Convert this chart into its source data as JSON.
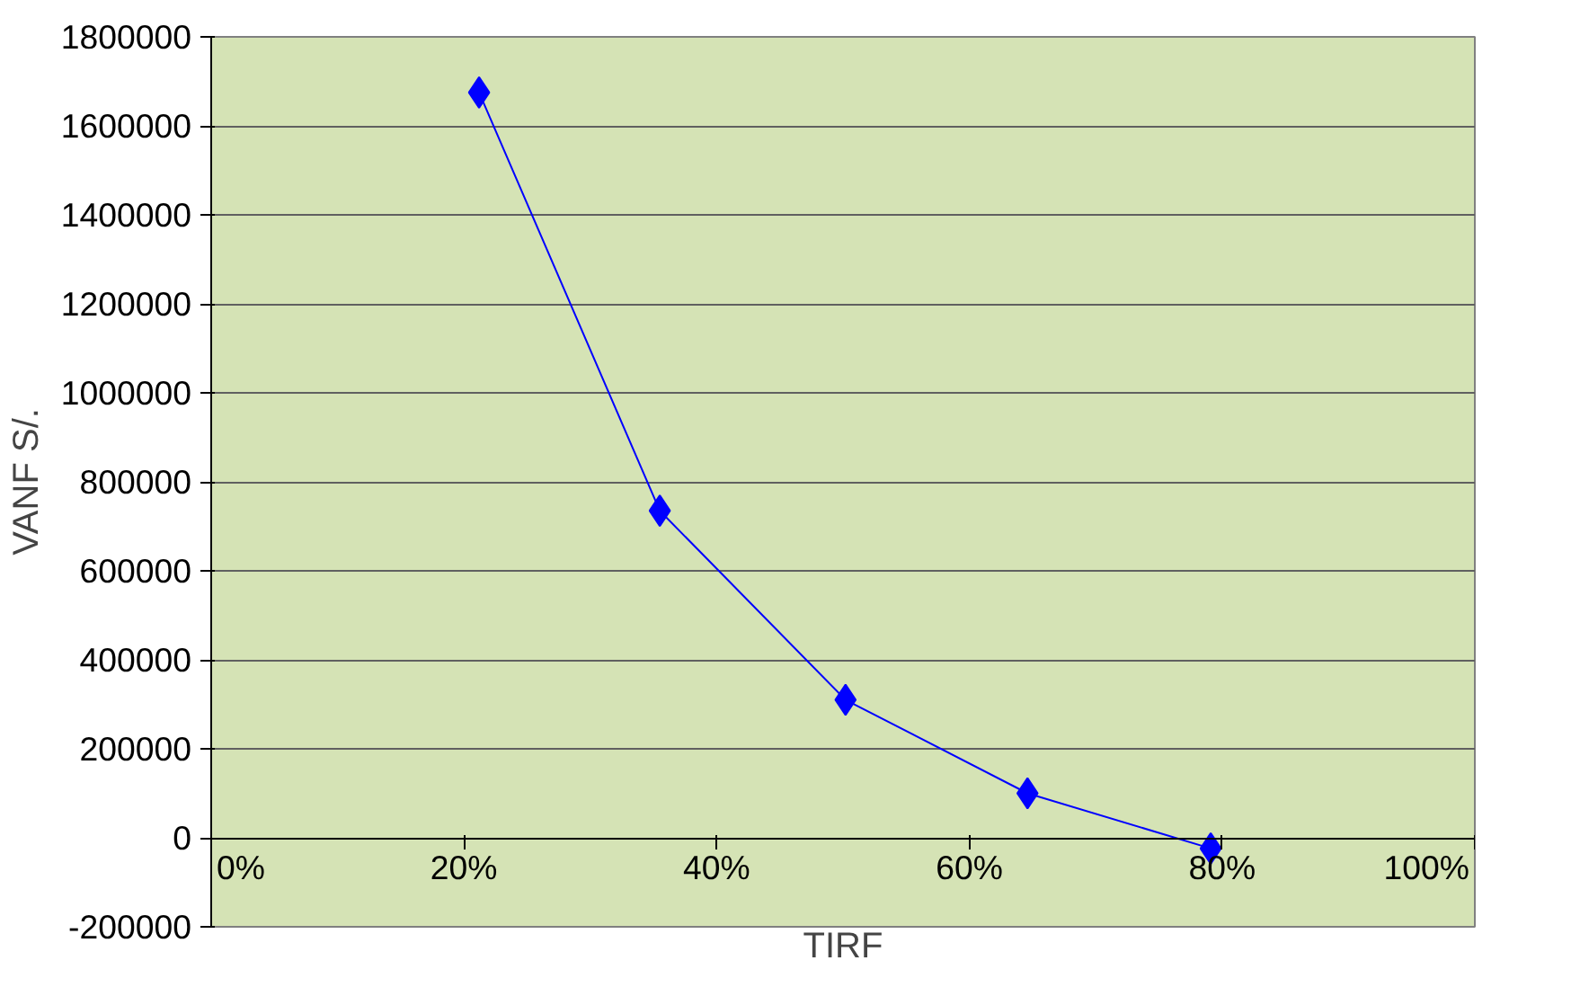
{
  "chart_data": {
    "type": "line",
    "xlabel": "TIRF",
    "ylabel": "VANF S/.",
    "x": [
      21.2,
      35.5,
      50.2,
      64.6,
      79.1
    ],
    "series": [
      {
        "color": "#0000ff",
        "values": [
          1675000,
          735000,
          310000,
          100000,
          -24000
        ]
      }
    ],
    "xlim": [
      0,
      100
    ],
    "xticks": [
      {
        "value": 0,
        "label": "0%"
      },
      {
        "value": 20,
        "label": "20%"
      },
      {
        "value": 40,
        "label": "40%"
      },
      {
        "value": 60,
        "label": "60%"
      },
      {
        "value": 80,
        "label": "80%"
      },
      {
        "value": 100,
        "label": "100%"
      }
    ],
    "ylim": [
      -200000,
      1800000
    ],
    "yticks": [
      -200000,
      0,
      200000,
      400000,
      600000,
      800000,
      1000000,
      1200000,
      1400000,
      1600000,
      1800000
    ],
    "grid": "y",
    "marker": "diamond",
    "line_style": "solid"
  }
}
